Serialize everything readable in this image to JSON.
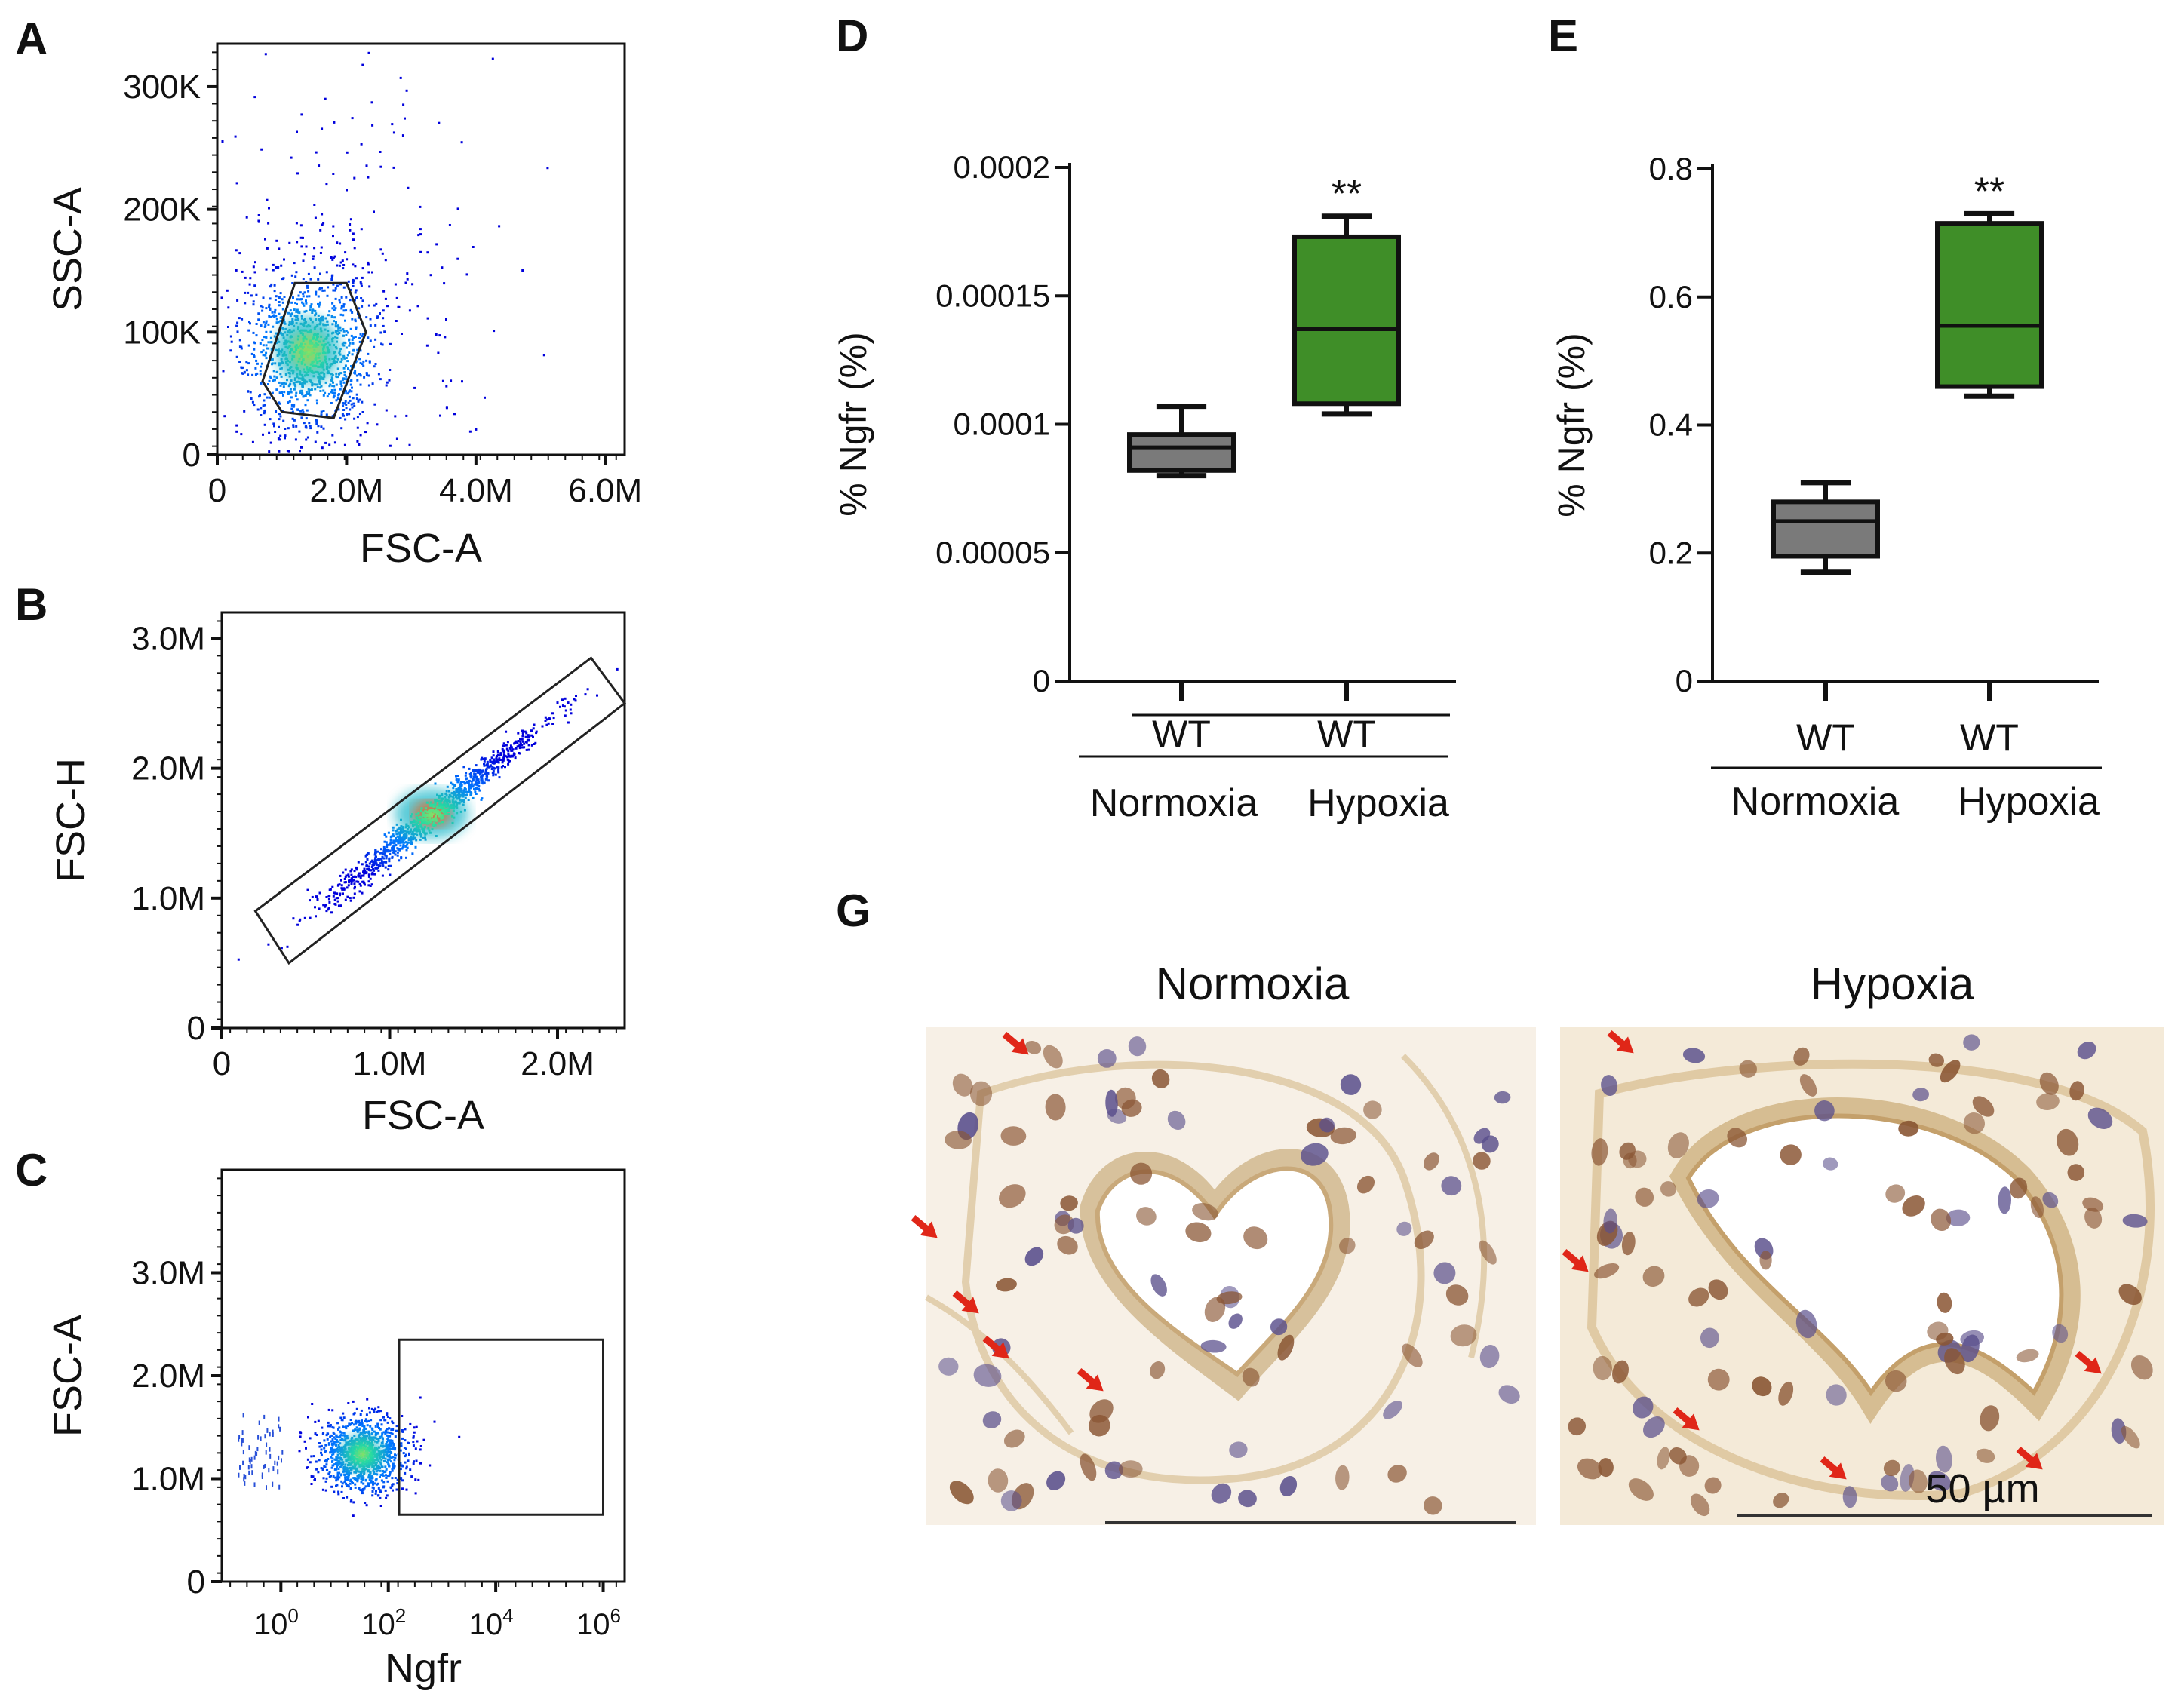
{
  "chart_data": [
    {
      "panel": "A",
      "type": "scatter",
      "xlabel": "FSC-A",
      "ylabel": "SSC-A",
      "xticks": [
        {
          "v": 0,
          "l": "0"
        },
        {
          "v": 2000000,
          "l": "2.0M"
        },
        {
          "v": 4000000,
          "l": "4.0M"
        },
        {
          "v": 6000000,
          "l": "6.0M"
        }
      ],
      "yticks": [
        {
          "v": 0,
          "l": "0"
        },
        {
          "v": 100000,
          "l": "100K"
        },
        {
          "v": 200000,
          "l": "200K"
        },
        {
          "v": 300000,
          "l": "300K"
        }
      ],
      "xlim": [
        0,
        6300000
      ],
      "ylim": [
        0,
        335000
      ],
      "cluster": {
        "x": 1400000,
        "y": 85000,
        "spread_x": 900000,
        "spread_y": 50000
      },
      "gate": [
        [
          1000000,
          35000
        ],
        [
          700000,
          60000
        ],
        [
          1200000,
          140000
        ],
        [
          2000000,
          140000
        ],
        [
          2300000,
          100000
        ],
        [
          1800000,
          30000
        ]
      ]
    },
    {
      "panel": "B",
      "type": "scatter",
      "xlabel": "FSC-A",
      "ylabel": "FSC-H",
      "xticks": [
        {
          "v": 0,
          "l": "0"
        },
        {
          "v": 1000000,
          "l": "1.0M"
        },
        {
          "v": 2000000,
          "l": "2.0M"
        }
      ],
      "yticks": [
        {
          "v": 0,
          "l": "0"
        },
        {
          "v": 1000000,
          "l": "1.0M"
        },
        {
          "v": 2000000,
          "l": "2.0M"
        },
        {
          "v": 3000000,
          "l": "3.0M"
        }
      ],
      "xlim": [
        0,
        2400000
      ],
      "ylim": [
        0,
        3200000
      ],
      "cluster": {
        "x": 1250000,
        "y": 1650000,
        "spread_x": 400000,
        "spread_y": 350000
      },
      "gate": [
        [
          200000,
          900000
        ],
        [
          400000,
          500000
        ],
        [
          2400000,
          2500000
        ],
        [
          2200000,
          2850000
        ]
      ]
    },
    {
      "panel": "C",
      "type": "scatter",
      "xlabel": "Ngfr",
      "ylabel": "FSC-A",
      "xticks": [
        {
          "v": 0,
          "b": "10",
          "e": "0"
        },
        {
          "v": 2,
          "b": "10",
          "e": "2"
        },
        {
          "v": 4,
          "b": "10",
          "e": "4"
        },
        {
          "v": 6,
          "b": "10",
          "e": "6"
        }
      ],
      "yticks": [
        {
          "v": 0,
          "l": "0"
        },
        {
          "v": 1000000,
          "l": "1.0M"
        },
        {
          "v": 2000000,
          "l": "2.0M"
        },
        {
          "v": 3000000,
          "l": "3.0M"
        }
      ],
      "xlim": [
        -1.1,
        6.4
      ],
      "ylim": [
        0,
        4000000
      ],
      "cluster": {
        "x": 1.5,
        "y": 1250000,
        "spread_x": 0.7,
        "spread_y": 330000
      },
      "gate": [
        [
          2.2,
          650000
        ],
        [
          2.2,
          2350000
        ],
        [
          6.0,
          2350000
        ],
        [
          6.0,
          650000
        ]
      ]
    },
    {
      "panel": "D",
      "type": "box",
      "ylabel": "% Ngfr (%)",
      "yticks": [
        "0",
        "0.00005",
        "0.0001",
        "0.00015",
        "0.0002"
      ],
      "ylim": [
        0,
        0.0002
      ],
      "categories": [
        "WT",
        "WT"
      ],
      "groups": [
        "Normoxia",
        "Hypoxia"
      ],
      "boxes": [
        {
          "min": 8e-05,
          "q1": 8.2e-05,
          "median": 9.1e-05,
          "q3": 9.6e-05,
          "max": 0.000107,
          "color": "#7a7a7a"
        },
        {
          "min": 0.000104,
          "q1": 0.000108,
          "median": 0.000137,
          "q3": 0.000173,
          "max": 0.000181,
          "color": "#3f8e28"
        }
      ],
      "significance": "**"
    },
    {
      "panel": "E",
      "type": "box",
      "ylabel": "% Ngfr (%)",
      "yticks": [
        "0",
        "0.2",
        "0.4",
        "0.6",
        "0.8"
      ],
      "ylim": [
        0,
        0.8
      ],
      "categories": [
        "WT",
        "WT"
      ],
      "groups": [
        "Normoxia",
        "Hypoxia"
      ],
      "boxes": [
        {
          "min": 0.17,
          "q1": 0.195,
          "median": 0.25,
          "q3": 0.28,
          "max": 0.31,
          "color": "#7a7a7a"
        },
        {
          "min": 0.445,
          "q1": 0.46,
          "median": 0.555,
          "q3": 0.715,
          "max": 0.73,
          "color": "#3f8e28"
        }
      ],
      "significance": "**"
    }
  ],
  "panel_letters": {
    "a": "A",
    "b": "B",
    "c": "C",
    "d": "D",
    "e": "E",
    "g": "G"
  },
  "micrographs": {
    "normoxia_title": "Normoxia",
    "hypoxia_title": "Hypoxia",
    "scale_label": "50 µm"
  },
  "colors": {
    "normoxia": "#7a7a7a",
    "hypoxia": "#3f8e28",
    "arrow": "#e02618",
    "stain_brown": "#8a5634",
    "stain_blue": "#5a4f8c"
  }
}
